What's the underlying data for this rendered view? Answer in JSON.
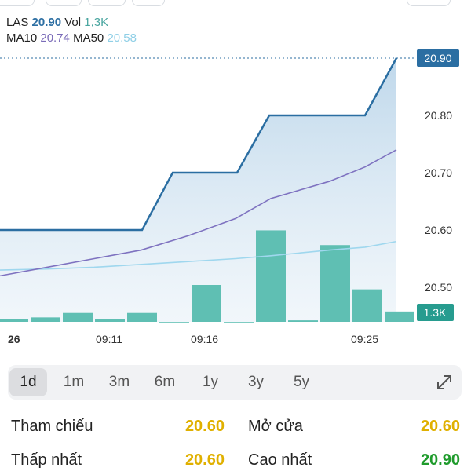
{
  "legend": {
    "las_label": "LAS",
    "las_value": "20.90",
    "vol_label": "Vol",
    "vol_value": "1,3K",
    "ma10_label": "MA10",
    "ma10_value": "20.74",
    "ma50_label": "MA50",
    "ma50_value": "20.58"
  },
  "colors": {
    "price_line": "#2b6ea2",
    "area_top": "#bcd6ea",
    "ma10": "#7e72c0",
    "ma50": "#9fd7ee",
    "volume": "#5fbfb3",
    "price_tag": "#2b6ea2",
    "volume_tag": "#279c8f",
    "value_yellow": "#e0b000",
    "value_green": "#1f9b2c"
  },
  "chart_data": {
    "type": "line",
    "y_axis_ticks": [
      "20.80",
      "20.70",
      "20.60",
      "20.50"
    ],
    "y_axis_tick_values": [
      20.8,
      20.7,
      20.6,
      20.5
    ],
    "x_axis_ticks": [
      "26",
      "09:11",
      "09:16",
      "09:25"
    ],
    "price_tag": "20.90",
    "volume_tag": "1.3K",
    "series": [
      {
        "name": "LAS",
        "values": [
          20.6,
          20.6,
          20.6,
          20.6,
          20.6,
          20.7,
          20.7,
          20.8,
          20.8,
          20.8,
          20.8,
          20.9
        ]
      },
      {
        "name": "MA10",
        "values": [
          20.52,
          20.545,
          20.56,
          20.59,
          20.62,
          20.65,
          20.68,
          20.71,
          20.74
        ]
      },
      {
        "name": "MA50",
        "values": [
          20.53,
          20.535,
          20.54,
          20.545,
          20.55,
          20.56,
          20.565,
          20.57,
          20.58
        ]
      }
    ],
    "volume": [
      2,
      3,
      6,
      2,
      6,
      0,
      25,
      0,
      62,
      1,
      52,
      22,
      7
    ],
    "ylim": [
      20.45,
      20.92
    ]
  },
  "periods": [
    "1d",
    "1m",
    "3m",
    "6m",
    "1y",
    "3y",
    "5y"
  ],
  "active_period": "1d",
  "stats": {
    "ref_label": "Tham chiếu",
    "ref_value": "20.60",
    "open_label": "Mở cửa",
    "open_value": "20.60",
    "low_label": "Thấp nhất",
    "low_value": "20.60",
    "high_label": "Cao nhất",
    "high_value": "20.90"
  }
}
